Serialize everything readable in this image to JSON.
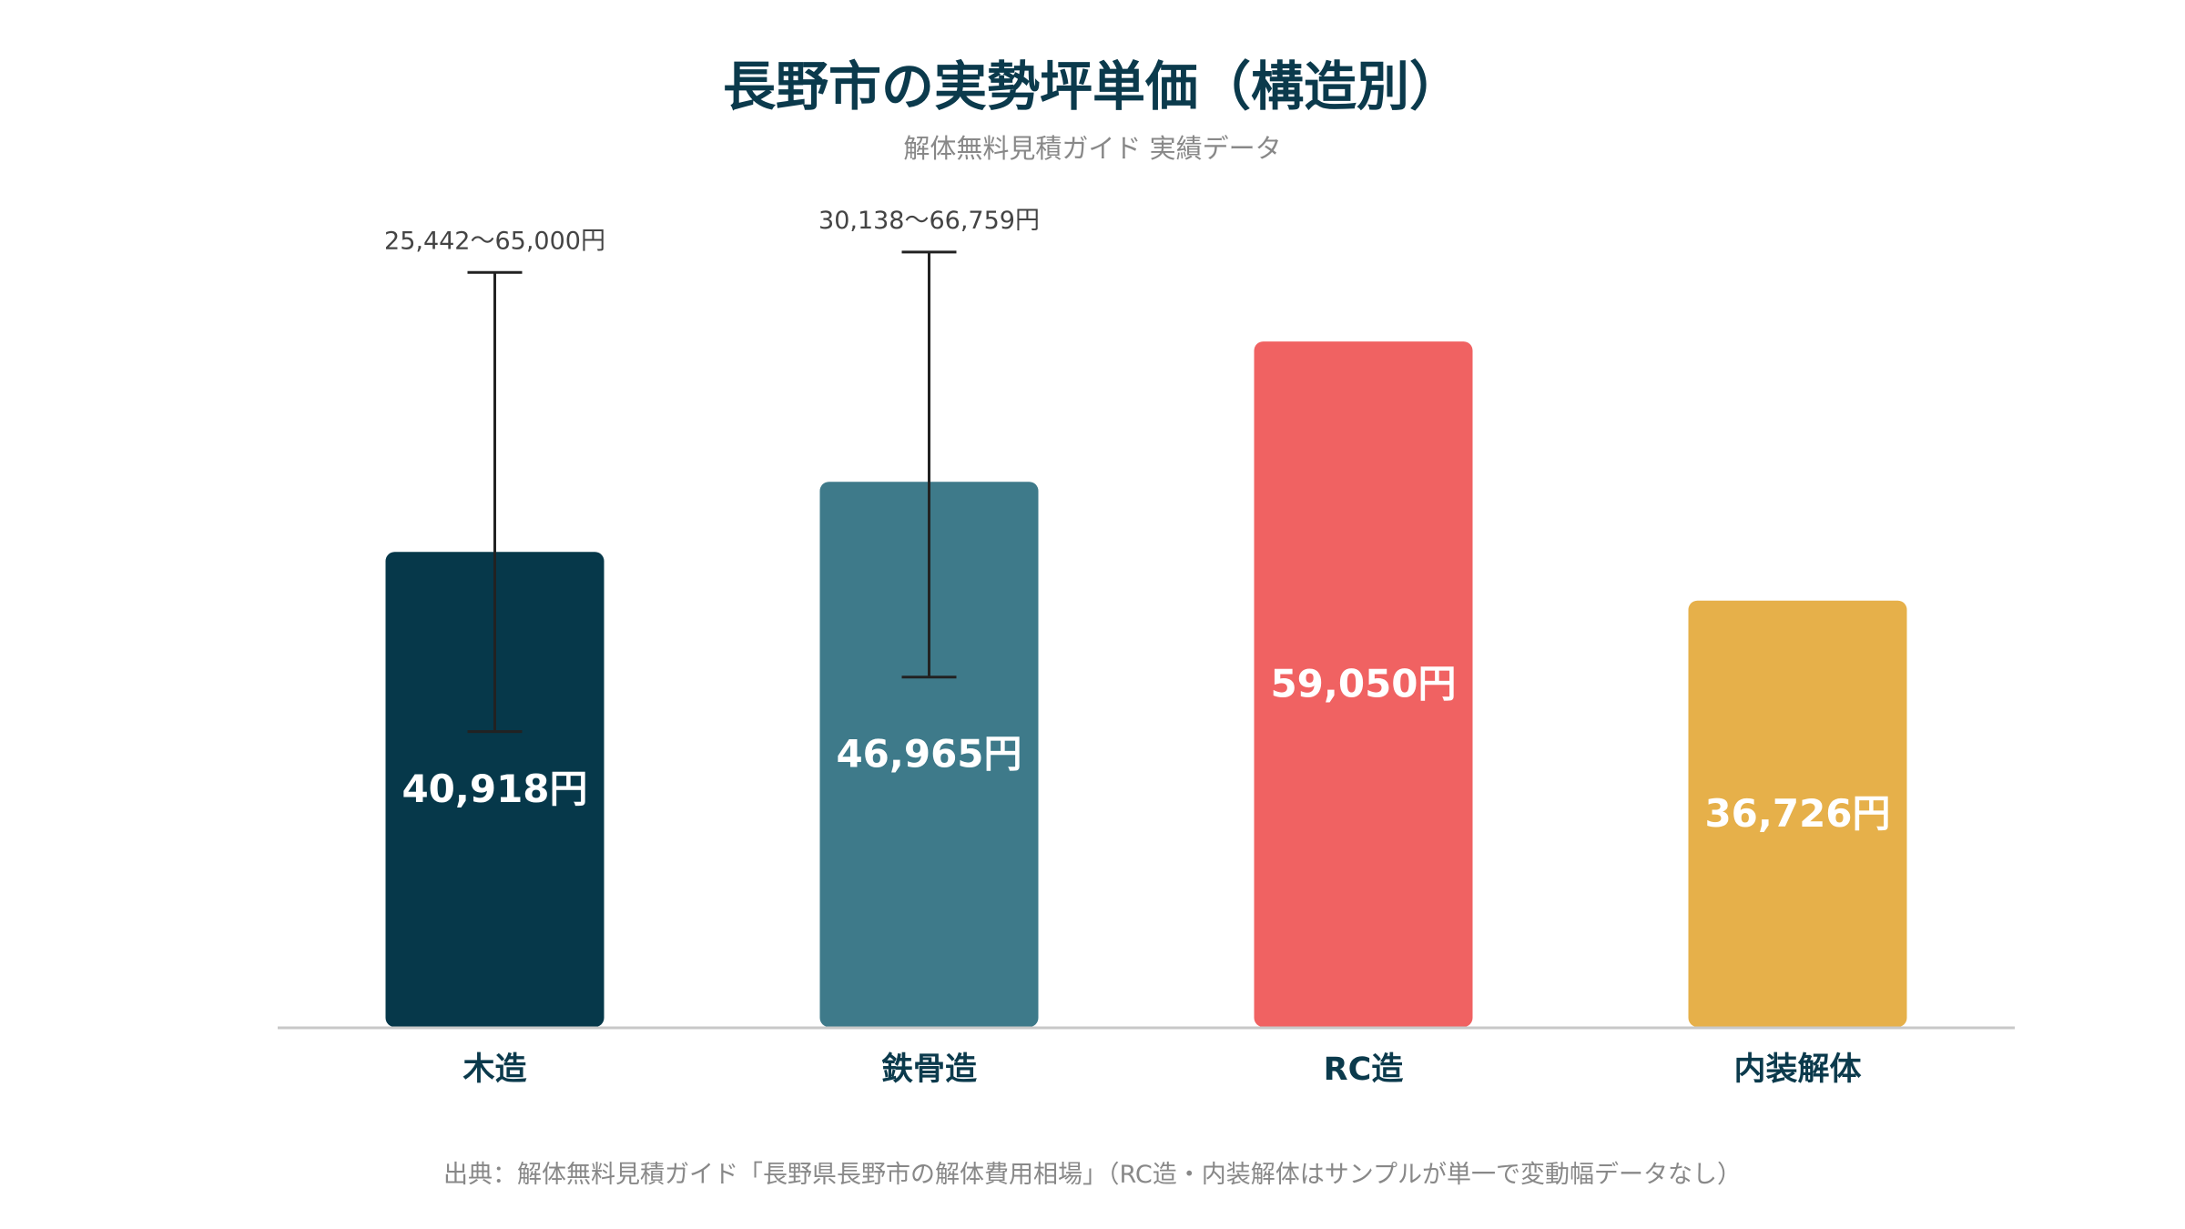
{
  "chart_data": {
    "type": "bar",
    "title": "長野市の実勢坪単価（構造別）",
    "subtitle": "解体無料見積ガイド 実績データ",
    "source": "出典：解体無料見積ガイド「長野県長野市の解体費用相場」（RC造・内装解体はサンプルが単一で変動幅データなし）",
    "categories": [
      "木造",
      "鉄骨造",
      "RC造",
      "内装解体"
    ],
    "values": [
      40918,
      46965,
      59050,
      36726
    ],
    "value_labels": [
      "40,918円",
      "46,965円",
      "59,050円",
      "36,726円"
    ],
    "colors": [
      "#06384a",
      "#3e7a8a",
      "#f06262",
      "#e6b04a"
    ],
    "error_ranges": [
      [
        25442,
        65000
      ],
      [
        30138,
        66759
      ],
      null,
      null
    ],
    "range_labels": [
      "25,442〜65,000円",
      "30,138〜66,759円",
      null,
      null
    ],
    "ylim": [
      0,
      80000
    ],
    "grid": false,
    "legend": false
  }
}
